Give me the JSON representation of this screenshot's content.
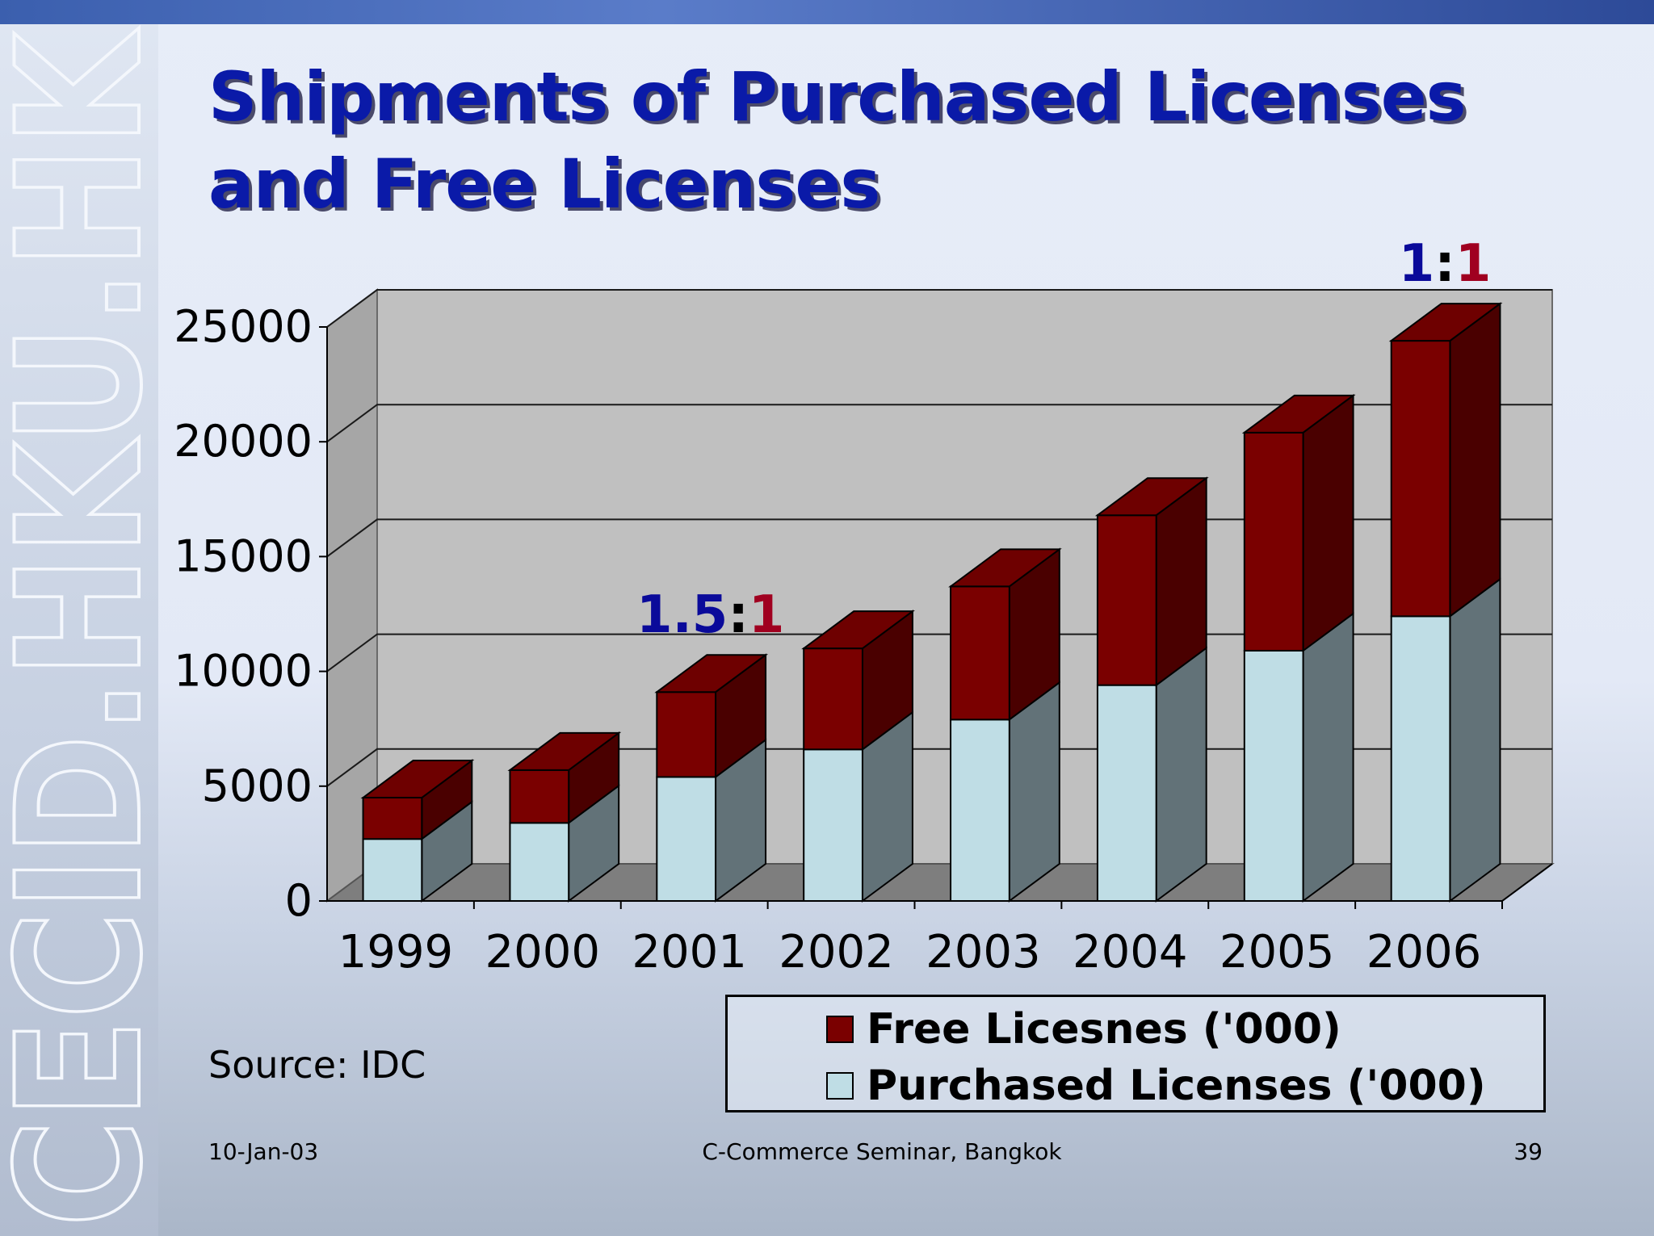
{
  "slide": {
    "title_line1": "Shipments of Purchased Licenses",
    "title_line2": "and Free Licenses",
    "watermark": "CECID.HKU.HK",
    "source": "Source: IDC",
    "footer_date": "10-Jan-03",
    "footer_center": "C-Commerce Seminar, Bangkok",
    "footer_page": "39"
  },
  "chart_data": {
    "type": "bar",
    "stacked": true,
    "three_d": true,
    "categories": [
      "1999",
      "2000",
      "2001",
      "2002",
      "2003",
      "2004",
      "2005",
      "2006"
    ],
    "series": [
      {
        "name": "Purchased Licenses ('000)",
        "values": [
          2700,
          3400,
          5400,
          6600,
          7900,
          9400,
          10900,
          12400
        ],
        "color": "#bfdde5"
      },
      {
        "name": "Free Licesnes ('000)",
        "values": [
          1800,
          2300,
          3700,
          4400,
          5800,
          7400,
          9500,
          12000
        ],
        "color": "#7a0000"
      }
    ],
    "ylim": [
      0,
      25000
    ],
    "yticks": [
      "0",
      "5000",
      "10000",
      "15000",
      "20000",
      "25000"
    ],
    "grid": true,
    "legend": "bottom-right",
    "annotations": [
      {
        "at": "2001",
        "left": "1.5",
        "sep": ":",
        "right": "1"
      },
      {
        "at": "2006",
        "left": "1",
        "sep": ":",
        "right": "1"
      }
    ],
    "annotation_colors": {
      "left": "#0a0a9a",
      "sep": "#000000",
      "right": "#a00020"
    }
  }
}
